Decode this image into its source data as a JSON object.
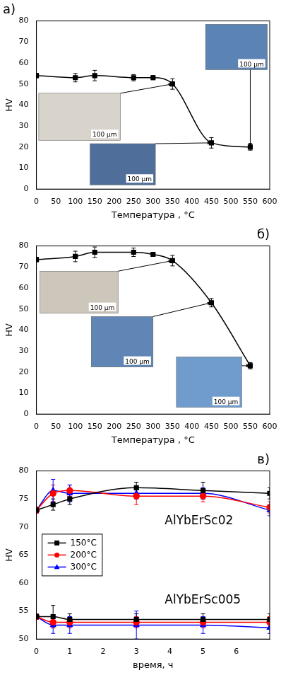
{
  "chart_data": [
    {
      "type": "line",
      "title": "а)",
      "x_label": "Температура , °C",
      "y_label": "HV",
      "grid": false,
      "x": [
        0,
        100,
        150,
        250,
        300,
        350,
        450,
        550
      ],
      "xlim": [
        0,
        600
      ],
      "xticks": [
        0,
        50,
        100,
        150,
        200,
        250,
        300,
        350,
        400,
        450,
        500,
        550,
        600
      ],
      "ylim": [
        0,
        80
      ],
      "yticks": [
        0,
        10,
        20,
        30,
        40,
        50,
        60,
        70,
        80
      ],
      "series": [
        {
          "color": "#000000",
          "marker": "square",
          "line_style": "solid",
          "values": [
            54,
            53,
            54,
            53,
            53,
            50,
            22,
            20
          ],
          "errors": [
            1,
            2,
            2.5,
            1.5,
            1,
            2.5,
            2.5,
            1.5
          ]
        }
      ],
      "insets": [
        "100 μm",
        "100 μm",
        "100 μm"
      ]
    },
    {
      "type": "line",
      "title": "б)",
      "x_label": "Температура , °C",
      "y_label": "HV",
      "grid": false,
      "x": [
        0,
        100,
        150,
        250,
        300,
        350,
        450,
        550
      ],
      "xlim": [
        0,
        600
      ],
      "xticks": [
        0,
        50,
        100,
        150,
        200,
        250,
        300,
        350,
        400,
        450,
        500,
        550,
        600
      ],
      "ylim": [
        0,
        80
      ],
      "yticks": [
        0,
        10,
        20,
        30,
        40,
        50,
        60,
        70,
        80
      ],
      "series": [
        {
          "color": "#000000",
          "marker": "square",
          "line_style": "solid",
          "values": [
            73.5,
            75,
            77,
            77,
            76,
            73,
            53,
            23
          ],
          "errors": [
            1,
            2.5,
            2.5,
            2,
            1,
            2.5,
            2,
            1.5
          ]
        }
      ],
      "insets": [
        "100 μm",
        "100 μm",
        "100 μm"
      ]
    },
    {
      "type": "line",
      "title": "в)",
      "x_label": "время, ч",
      "y_label": "HV",
      "grid": false,
      "legend": "center left",
      "x": [
        0,
        0.5,
        1,
        3,
        5,
        7
      ],
      "xlim": [
        0,
        7
      ],
      "xticks": [
        0,
        1,
        2,
        3,
        4,
        5,
        6
      ],
      "ylim": [
        50,
        80
      ],
      "yticks": [
        50,
        55,
        60,
        65,
        70,
        75,
        80
      ],
      "annotations": [
        "AlYbErSc02",
        "AlYbErSc005"
      ],
      "series": [
        {
          "name": "150°C",
          "color": "#000000",
          "marker": "square",
          "line_style": "solid",
          "values": [
            73,
            74,
            75,
            77,
            76.5,
            76
          ],
          "errors": [
            0.5,
            1,
            1,
            1,
            1.5,
            1
          ]
        },
        {
          "name": "200°C",
          "color": "#ff0000",
          "marker": "circle",
          "line_style": "solid",
          "values": [
            73,
            76,
            76.5,
            75.5,
            75.5,
            73.5
          ],
          "errors": [
            0.5,
            1.5,
            1,
            1.5,
            1,
            1
          ]
        },
        {
          "name": "300°C",
          "color": "#0000ff",
          "marker": "triangle",
          "line_style": "solid",
          "values": [
            73,
            76.5,
            76,
            76,
            76,
            73
          ],
          "errors": [
            0.5,
            2,
            1.5,
            1,
            1,
            1
          ]
        },
        {
          "name": "150°C",
          "color": "#000000",
          "marker": "square",
          "line_style": "solid",
          "values": [
            54,
            54,
            53.5,
            53.5,
            53.5,
            53.5
          ],
          "errors": [
            0.5,
            2,
            1,
            1,
            1,
            1
          ]
        },
        {
          "name": "200°C",
          "color": "#ff0000",
          "marker": "circle",
          "line_style": "solid",
          "values": [
            54,
            53,
            53,
            53,
            53,
            53
          ],
          "errors": [
            0.5,
            1,
            1,
            1,
            1,
            1
          ]
        },
        {
          "name": "300°C",
          "color": "#0000ff",
          "marker": "triangle",
          "line_style": "solid",
          "values": [
            54,
            52.5,
            52.5,
            52.5,
            52.5,
            52
          ],
          "errors": [
            0.5,
            1.5,
            1.5,
            2.5,
            1.5,
            1
          ]
        }
      ]
    }
  ]
}
